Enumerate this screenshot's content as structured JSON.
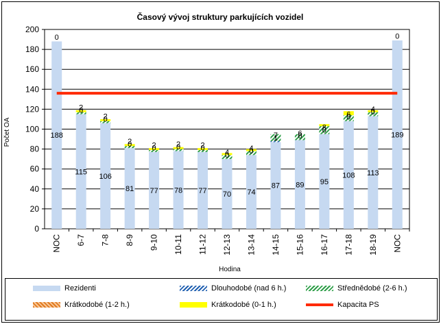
{
  "chart_data": {
    "type": "bar",
    "stacked": true,
    "title": "Časový vývoj struktury parkujících vozidel",
    "xlabel": "Hodina",
    "ylabel": "Počet OA",
    "ylim": [
      0,
      200
    ],
    "yticks": [
      "0",
      "20",
      "40",
      "60",
      "80",
      "100",
      "120",
      "140",
      "160",
      "180",
      "200"
    ],
    "grid": true,
    "legend_position": "bottom",
    "categories": [
      "NOC",
      "6-7",
      "7-8",
      "8-9",
      "9-10",
      "10-11",
      "11-12",
      "12-13",
      "13-14",
      "14-15",
      "15-16",
      "16-17",
      "17-18",
      "18-19",
      "NOC"
    ],
    "series": [
      {
        "name": "Rezidenti",
        "color": "#c6d9f1",
        "values": [
          188,
          115,
          106,
          81,
          77,
          78,
          77,
          70,
          74,
          87,
          89,
          95,
          108,
          113,
          189
        ]
      },
      {
        "name": "Dlouhodobé (nad 6 h.)",
        "color": "#1f5fb0",
        "values": [
          0,
          0,
          0,
          0,
          0,
          0,
          0,
          0,
          0,
          1,
          0,
          0,
          0,
          0,
          0
        ]
      },
      {
        "name": "Střednědobé (2-6 h.)",
        "color": "#2e9e48",
        "values": [
          0,
          2,
          2,
          2,
          2,
          2,
          2,
          4,
          4,
          7,
          6,
          8,
          6,
          4,
          0
        ]
      },
      {
        "name": "Krátkodobé (1-2 h.)",
        "color": "#e07a1f",
        "values": [
          0,
          0,
          0,
          0,
          0,
          0,
          0,
          0,
          0,
          0,
          0,
          0,
          0,
          0,
          0
        ]
      },
      {
        "name": "Krátkodobé (0-1 h.)",
        "color": "#ffff00",
        "values": [
          0,
          2,
          2,
          2,
          2,
          2,
          2,
          2,
          2,
          0,
          0,
          2,
          4,
          2,
          0
        ]
      }
    ],
    "bar_labels": [
      {
        "series": "Rezidenti",
        "values": [
          "188",
          "115",
          "106",
          "81",
          "77",
          "78",
          "77",
          "70",
          "74",
          "87",
          "89",
          "95",
          "108",
          "113",
          "189"
        ]
      },
      {
        "series": "Dlouhodobé (nad 6 h.)",
        "values": [
          "0",
          "0",
          "0",
          "0",
          "0",
          "0",
          "0",
          "0",
          "0",
          "1",
          "0",
          "0",
          "0",
          "0",
          "0"
        ]
      },
      {
        "series": "Střednědobé (2-6 h.)",
        "values": [
          "0",
          "2",
          "2",
          "2",
          "2",
          "2",
          "2",
          "4",
          "4",
          "7",
          "6",
          "8",
          "6",
          "4",
          "0"
        ]
      }
    ],
    "lines": [
      {
        "name": "Kapacita PS",
        "color": "#ff2a00",
        "value": 136
      }
    ]
  }
}
